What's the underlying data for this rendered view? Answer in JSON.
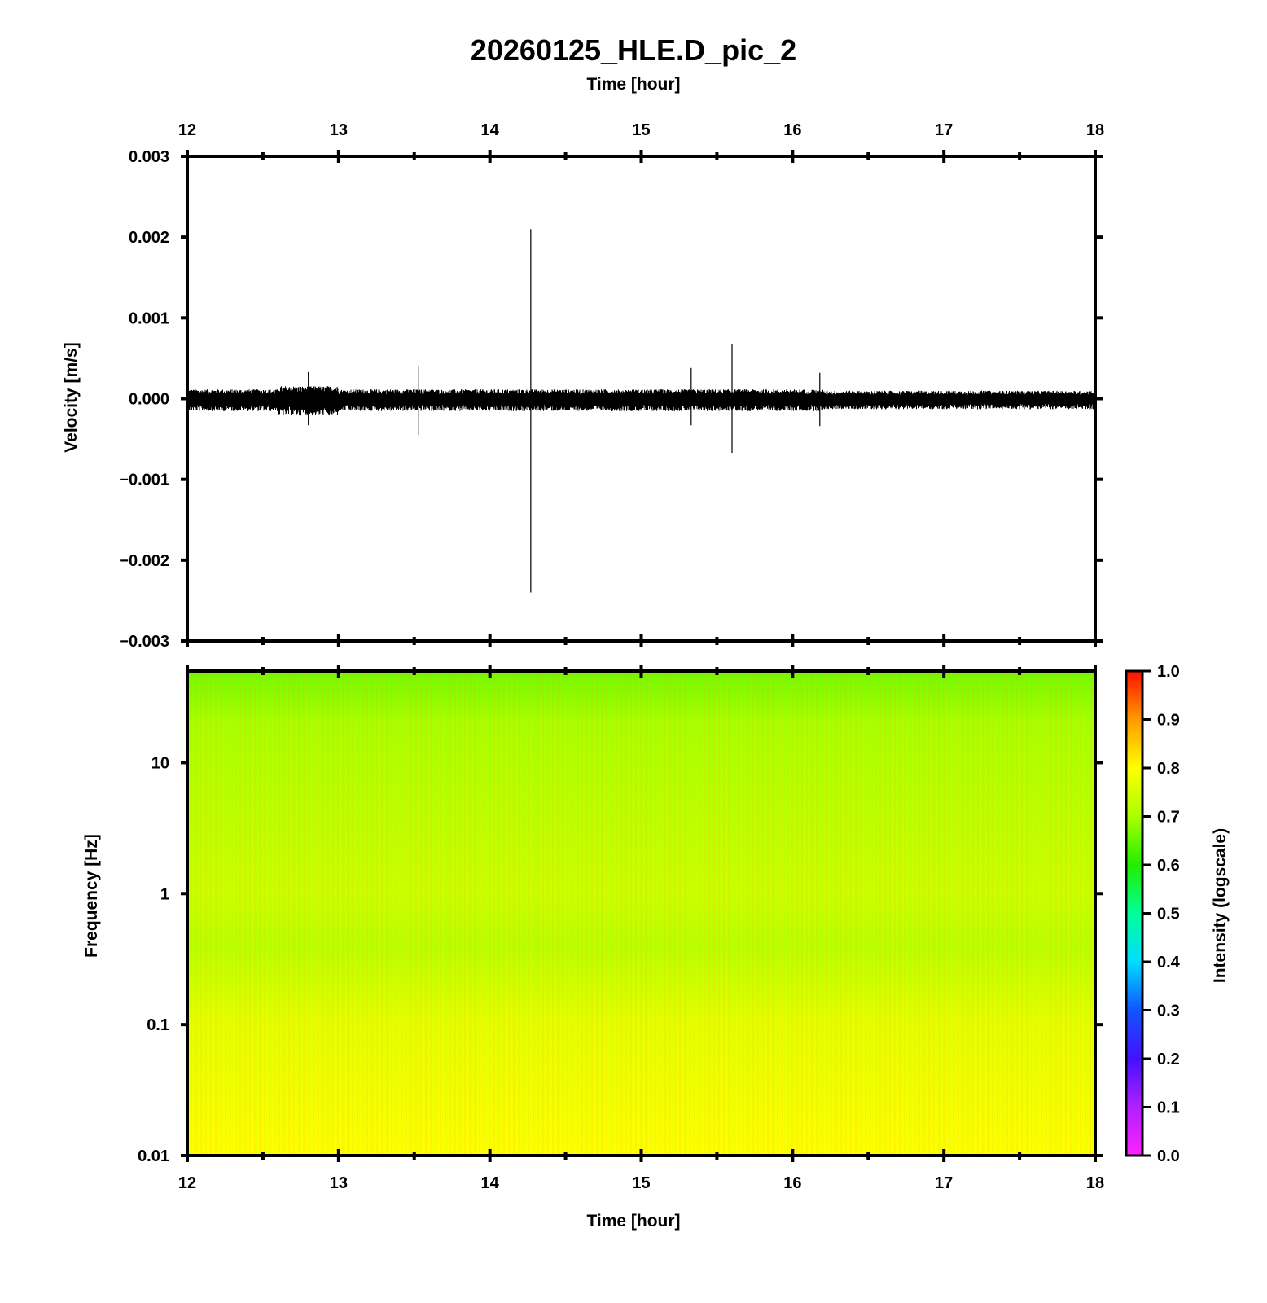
{
  "figure": {
    "title": "20260125_HLE.D_pic_2"
  },
  "chart_data": [
    {
      "type": "line",
      "name": "waveform",
      "title": "20260125_HLE.D_pic_2",
      "xlabel": "Time [hour]",
      "ylabel": "Velocity [m/s]",
      "xlim": [
        12,
        18
      ],
      "ylim": [
        -0.003,
        0.003
      ],
      "x_ticks": [
        12,
        13,
        14,
        15,
        16,
        17,
        18
      ],
      "x_tick_labels": [
        "12",
        "13",
        "14",
        "15",
        "16",
        "17",
        "18"
      ],
      "y_ticks": [
        0.003,
        0.002,
        0.001,
        0.0,
        -0.001,
        -0.002,
        -0.003
      ],
      "y_tick_labels": [
        "0.003",
        "0.002",
        "0.001",
        "0.000",
        "−0.001",
        "−0.002",
        "−0.003"
      ],
      "grid": false,
      "color": "#000000",
      "noise_amplitude": 0.0001,
      "spikes": [
        {
          "time": 12.8,
          "max": 0.00033,
          "min": -0.00033
        },
        {
          "time": 13.53,
          "max": 0.0004,
          "min": -0.00045
        },
        {
          "time": 14.27,
          "max": 0.0021,
          "min": -0.0024
        },
        {
          "time": 15.33,
          "max": 0.00038,
          "min": -0.00033
        },
        {
          "time": 15.6,
          "max": 0.00067,
          "min": -0.00067
        },
        {
          "time": 16.18,
          "max": 0.00032,
          "min": -0.00034
        }
      ]
    },
    {
      "type": "heatmap",
      "name": "spectrogram",
      "xlabel": "Time [hour]",
      "ylabel": "Frequency [Hz]",
      "xlim": [
        12,
        18
      ],
      "ylim": [
        0.01,
        50
      ],
      "y_scale": "log",
      "x_ticks": [
        12,
        13,
        14,
        15,
        16,
        17,
        18
      ],
      "x_tick_labels": [
        "12",
        "13",
        "14",
        "15",
        "16",
        "17",
        "18"
      ],
      "y_ticks": [
        10,
        1,
        0.1,
        0.01
      ],
      "y_tick_labels": [
        "10",
        "1",
        "0.1",
        "0.01"
      ],
      "intensity_profile": [
        {
          "frequency": 50,
          "intensity": 0.66
        },
        {
          "frequency": 20,
          "intensity": 0.7
        },
        {
          "frequency": 5,
          "intensity": 0.72
        },
        {
          "frequency": 1,
          "intensity": 0.74
        },
        {
          "frequency": 0.4,
          "intensity": 0.72
        },
        {
          "frequency": 0.1,
          "intensity": 0.77
        },
        {
          "frequency": 0.01,
          "intensity": 0.8
        }
      ],
      "colorbar": {
        "label": "Intensity (logscale)",
        "range": [
          0.0,
          1.0
        ],
        "ticks": [
          1.0,
          0.9,
          0.8,
          0.7,
          0.6,
          0.5,
          0.4,
          0.3,
          0.2,
          0.1,
          0.0
        ],
        "tick_labels": [
          "1.0",
          "0.9",
          "0.8",
          "0.7",
          "0.6",
          "0.5",
          "0.4",
          "0.3",
          "0.2",
          "0.1",
          "0.0"
        ],
        "colormap": [
          {
            "value": 0.0,
            "color": "#ff22ff"
          },
          {
            "value": 0.1,
            "color": "#b020ff"
          },
          {
            "value": 0.2,
            "color": "#4411ff"
          },
          {
            "value": 0.3,
            "color": "#1155ff"
          },
          {
            "value": 0.4,
            "color": "#00ddff"
          },
          {
            "value": 0.5,
            "color": "#00ff99"
          },
          {
            "value": 0.6,
            "color": "#22ee00"
          },
          {
            "value": 0.7,
            "color": "#aaff00"
          },
          {
            "value": 0.8,
            "color": "#ffff00"
          },
          {
            "value": 0.9,
            "color": "#ff9900"
          },
          {
            "value": 1.0,
            "color": "#ff1100"
          }
        ]
      }
    }
  ]
}
